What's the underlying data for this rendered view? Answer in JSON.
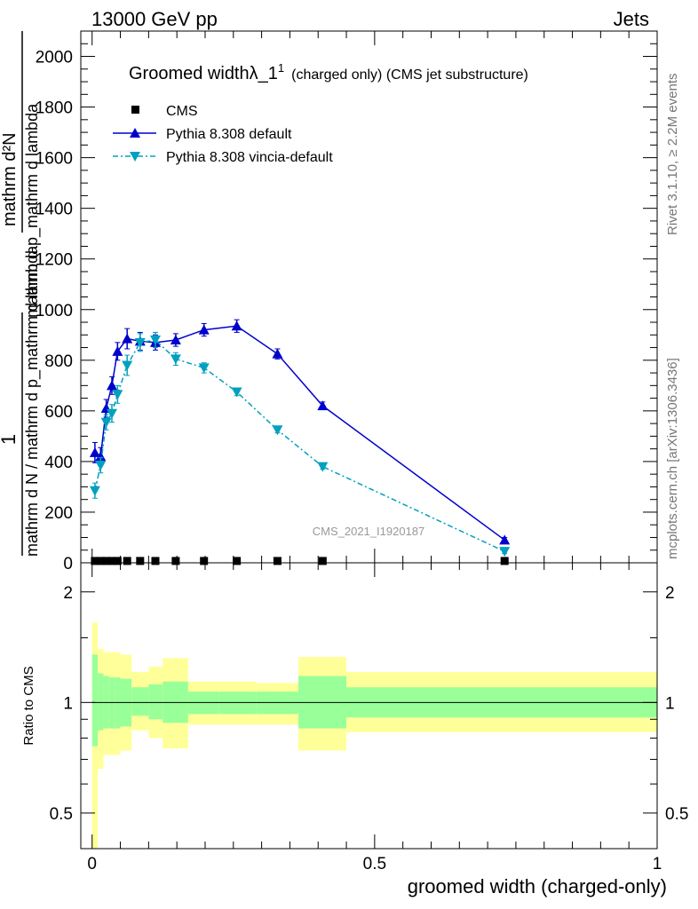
{
  "header": {
    "left": "13000 GeV pp",
    "right": "Jets"
  },
  "side_text": {
    "rivet": "Rivet 3.1.10, ≥ 2.2M events",
    "mcplots": "mcplots.cern.ch [arXiv:1306.3436]"
  },
  "watermark": "CMS_2021_I1920187",
  "chart_data": [
    {
      "type": "line",
      "title_main": "Groomed widthλ_1",
      "title_sup": "1",
      "title_rest": "(charged only) (CMS jet substructure)",
      "ylabel_top": "mathrm d²N",
      "ylabel_top_denominator": "mathrm d p_mathrm d lambda",
      "ylabel_one": "1",
      "ylabel_bottom": "mathrm d N / mathrm d p_mathrm d lambda",
      "xlim": [
        -0.02,
        1.0
      ],
      "ylim": [
        0,
        2100
      ],
      "y_ticks": [
        "0",
        "200",
        "400",
        "600",
        "800",
        "1000",
        "1200",
        "1400",
        "1600",
        "1800",
        "2000"
      ],
      "legend_position": "top-left",
      "series": [
        {
          "name": "CMS",
          "color": "#000000",
          "marker": "square",
          "x": [
            0.005,
            0.015,
            0.025,
            0.035,
            0.045,
            0.062,
            0.085,
            0.112,
            0.148,
            0.198,
            0.256,
            0.328,
            0.408,
            0.73
          ],
          "y": [
            2,
            2,
            2,
            2,
            2,
            2,
            2,
            2,
            2,
            2,
            2,
            2,
            2,
            2
          ]
        },
        {
          "name": "Pythia 8.308 default",
          "color": "#0000cc",
          "marker": "triangle-up",
          "x": [
            0.005,
            0.015,
            0.025,
            0.035,
            0.045,
            0.062,
            0.085,
            0.112,
            0.148,
            0.198,
            0.256,
            0.328,
            0.408,
            0.73
          ],
          "y": [
            435,
            420,
            610,
            700,
            835,
            885,
            875,
            870,
            880,
            920,
            935,
            825,
            620,
            90
          ],
          "err": [
            40,
            35,
            35,
            35,
            35,
            40,
            35,
            30,
            25,
            25,
            25,
            20,
            15,
            10
          ]
        },
        {
          "name": "Pythia 8.308 vincia-default",
          "color": "#00a0c0",
          "marker": "triangle-down",
          "x": [
            0.005,
            0.015,
            0.025,
            0.035,
            0.045,
            0.062,
            0.085,
            0.112,
            0.148,
            0.198,
            0.256,
            0.328,
            0.408,
            0.73
          ],
          "y": [
            285,
            385,
            555,
            590,
            665,
            780,
            870,
            880,
            805,
            770,
            675,
            525,
            380,
            45
          ],
          "err": [
            30,
            30,
            30,
            35,
            35,
            40,
            35,
            30,
            25,
            20,
            15,
            12,
            10,
            8
          ]
        }
      ]
    },
    {
      "type": "area",
      "ylabel": "Ratio to CMS",
      "xlabel": "groomed width (charged-only)",
      "xlim": [
        -0.02,
        1.0
      ],
      "ylim": [
        0.4,
        2.4
      ],
      "y_scale": "log",
      "x_ticks": [
        "0",
        "0.5",
        "1"
      ],
      "y_ticks": [
        "0.5",
        "1",
        "2"
      ],
      "bins": [
        0,
        0.01,
        0.02,
        0.03,
        0.04,
        0.05,
        0.07,
        0.1,
        0.125,
        0.17,
        0.225,
        0.29,
        0.365,
        0.45,
        1.0
      ],
      "inner_band": {
        "color": "#99ff99",
        "low": [
          0.76,
          0.84,
          0.85,
          0.85,
          0.85,
          0.86,
          0.92,
          0.9,
          0.88,
          0.93,
          0.93,
          0.93,
          0.85,
          0.91
        ],
        "high": [
          1.35,
          1.2,
          1.18,
          1.17,
          1.17,
          1.16,
          1.1,
          1.12,
          1.14,
          1.07,
          1.07,
          1.07,
          1.18,
          1.1
        ]
      },
      "outer_band": {
        "color": "#ffff99",
        "low": [
          0.38,
          0.66,
          0.72,
          0.72,
          0.72,
          0.74,
          0.84,
          0.8,
          0.75,
          0.87,
          0.87,
          0.87,
          0.74,
          0.83
        ],
        "high": [
          1.65,
          1.4,
          1.37,
          1.37,
          1.37,
          1.35,
          1.21,
          1.25,
          1.32,
          1.14,
          1.14,
          1.13,
          1.33,
          1.21
        ]
      }
    }
  ]
}
